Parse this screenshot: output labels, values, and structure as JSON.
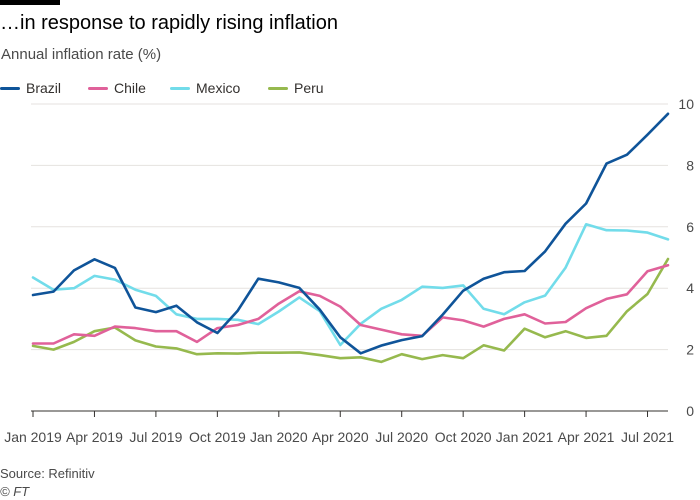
{
  "header": {
    "title": "…in response to rapidly rising inflation",
    "subtitle": "Annual inflation rate (%)"
  },
  "footer": {
    "source": "Source: Refinitiv",
    "credit": "© FT"
  },
  "colors": {
    "brazil": "#0f5499",
    "chile": "#e0619a",
    "mexico": "#72dcea",
    "peru": "#96b94e",
    "grid": "#e5e2df",
    "axis": "#33302e"
  },
  "chart_data": {
    "type": "line",
    "title": "…in response to rapidly rising inflation",
    "ylabel": "Annual inflation rate (%)",
    "xlabel": "",
    "ylim": [
      0,
      10
    ],
    "yticks": [
      0,
      2,
      4,
      6,
      8,
      10
    ],
    "grid": "horizontal",
    "legend": "top-left",
    "x": [
      "Jan 2019",
      "Feb 2019",
      "Mar 2019",
      "Apr 2019",
      "May 2019",
      "Jun 2019",
      "Jul 2019",
      "Aug 2019",
      "Sep 2019",
      "Oct 2019",
      "Nov 2019",
      "Dec 2019",
      "Jan 2020",
      "Feb 2020",
      "Mar 2020",
      "Apr 2020",
      "May 2020",
      "Jun 2020",
      "Jul 2020",
      "Aug 2020",
      "Sep 2020",
      "Oct 2020",
      "Nov 2020",
      "Dec 2020",
      "Jan 2021",
      "Feb 2021",
      "Mar 2021",
      "Apr 2021",
      "May 2021",
      "Jun 2021",
      "Jul 2021",
      "Aug 2021"
    ],
    "xtick_labels": [
      "Jan 2019",
      "Apr 2019",
      "Jul 2019",
      "Oct 2019",
      "Jan 2020",
      "Apr 2020",
      "Jul 2020",
      "Oct 2020",
      "Jan 2021",
      "Apr 2021",
      "Jul 2021"
    ],
    "series": [
      {
        "name": "Brazil",
        "color": "#0f5499",
        "values": [
          3.78,
          3.89,
          4.58,
          4.94,
          4.66,
          3.37,
          3.22,
          3.43,
          2.89,
          2.54,
          3.27,
          4.31,
          4.19,
          4.01,
          3.3,
          2.4,
          1.88,
          2.13,
          2.31,
          2.44,
          3.14,
          3.92,
          4.31,
          4.52,
          4.56,
          5.2,
          6.1,
          6.76,
          8.06,
          8.35,
          9.0,
          9.68
        ]
      },
      {
        "name": "Chile",
        "color": "#e0619a",
        "values": [
          2.2,
          2.2,
          2.5,
          2.45,
          2.75,
          2.7,
          2.6,
          2.6,
          2.25,
          2.7,
          2.8,
          3.0,
          3.5,
          3.9,
          3.75,
          3.4,
          2.8,
          2.65,
          2.5,
          2.45,
          3.05,
          2.95,
          2.75,
          3.0,
          3.15,
          2.85,
          2.9,
          3.35,
          3.65,
          3.8,
          4.55,
          4.75
        ]
      },
      {
        "name": "Mexico",
        "color": "#72dcea",
        "values": [
          4.35,
          3.95,
          4.0,
          4.4,
          4.28,
          3.95,
          3.75,
          3.15,
          3.0,
          3.0,
          2.97,
          2.83,
          3.24,
          3.7,
          3.25,
          2.15,
          2.84,
          3.33,
          3.62,
          4.05,
          4.01,
          4.09,
          3.33,
          3.15,
          3.54,
          3.76,
          4.67,
          6.08,
          5.89,
          5.88,
          5.81,
          5.59
        ]
      },
      {
        "name": "Peru",
        "color": "#96b94e",
        "values": [
          2.12,
          2.0,
          2.25,
          2.6,
          2.72,
          2.3,
          2.1,
          2.04,
          1.85,
          1.88,
          1.87,
          1.9,
          1.9,
          1.91,
          1.82,
          1.72,
          1.75,
          1.6,
          1.85,
          1.69,
          1.82,
          1.72,
          2.14,
          1.97,
          2.68,
          2.4,
          2.6,
          2.38,
          2.45,
          3.25,
          3.81,
          4.95
        ]
      }
    ]
  }
}
